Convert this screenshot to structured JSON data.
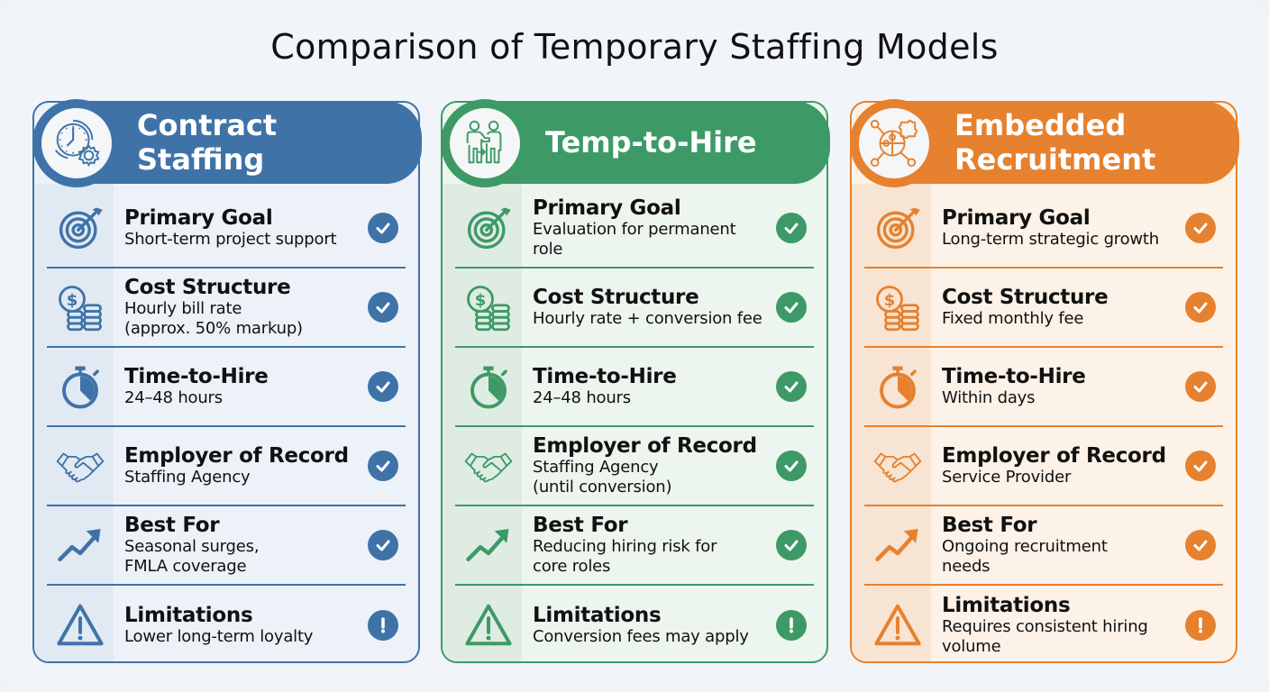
{
  "title": "Comparison of Temporary Staffing Models",
  "colors": {
    "blue": "#3f73a8",
    "green": "#3d9a66",
    "orange": "#e6812f"
  },
  "row_labels": [
    "Primary Goal",
    "Cost Structure",
    "Time-to-Hire",
    "Employer of Record",
    "Best For",
    "Limitations"
  ],
  "row_icons": [
    "target-icon",
    "coins-dollar-icon",
    "stopwatch-icon",
    "handshake-icon",
    "trending-up-icon",
    "warning-triangle-icon"
  ],
  "models": [
    {
      "name": "Contract Staffing",
      "header_icon": "clock-gear-icon",
      "rows": [
        {
          "label": "Primary Goal",
          "value": "Short-term project support",
          "status": "check"
        },
        {
          "label": "Cost Structure",
          "value": "Hourly bill rate\n(approx. 50% markup)",
          "status": "check"
        },
        {
          "label": "Time-to-Hire",
          "value": "24–48 hours",
          "status": "check"
        },
        {
          "label": "Employer of Record",
          "value": "Staffing Agency",
          "status": "check"
        },
        {
          "label": "Best For",
          "value": "Seasonal surges,\nFMLA coverage",
          "status": "check"
        },
        {
          "label": "Limitations",
          "value": "Lower long-term loyalty",
          "status": "alert"
        }
      ]
    },
    {
      "name": "Temp-to-Hire",
      "header_icon": "people-handoff-icon",
      "rows": [
        {
          "label": "Primary Goal",
          "value": "Evaluation for permanent role",
          "status": "check"
        },
        {
          "label": "Cost Structure",
          "value": "Hourly rate + conversion fee",
          "status": "check"
        },
        {
          "label": "Time-to-Hire",
          "value": "24–48 hours",
          "status": "check"
        },
        {
          "label": "Employer of Record",
          "value": "Staffing Agency\n(until conversion)",
          "status": "check"
        },
        {
          "label": "Best For",
          "value": "Reducing hiring risk for\ncore roles",
          "status": "check"
        },
        {
          "label": "Limitations",
          "value": "Conversion fees may apply",
          "status": "alert"
        }
      ]
    },
    {
      "name": "Embedded\nRecruitment",
      "header_icon": "puzzle-network-icon",
      "rows": [
        {
          "label": "Primary Goal",
          "value": "Long-term strategic growth",
          "status": "check"
        },
        {
          "label": "Cost Structure",
          "value": "Fixed monthly fee",
          "status": "check"
        },
        {
          "label": "Time-to-Hire",
          "value": "Within days",
          "status": "check"
        },
        {
          "label": "Employer of Record",
          "value": "Service Provider",
          "status": "check"
        },
        {
          "label": "Best For",
          "value": "Ongoing recruitment\nneeds",
          "status": "check"
        },
        {
          "label": "Limitations",
          "value": "Requires consistent hiring\nvolume",
          "status": "alert"
        }
      ]
    }
  ]
}
